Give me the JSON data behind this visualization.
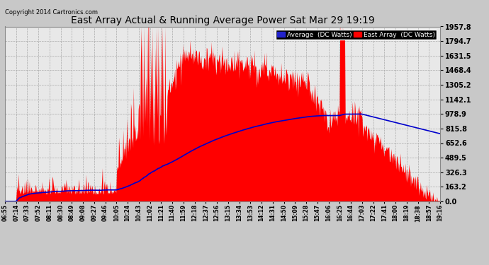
{
  "title": "East Array Actual & Running Average Power Sat Mar 29 19:19",
  "copyright": "Copyright 2014 Cartronics.com",
  "legend_avg": "Average  (DC Watts)",
  "legend_east": "East Array  (DC Watts)",
  "ymax": 1957.8,
  "yticks": [
    0.0,
    163.2,
    326.3,
    489.5,
    652.6,
    815.8,
    978.9,
    1142.1,
    1305.2,
    1468.4,
    1631.5,
    1794.7,
    1957.8
  ],
  "fill_color": "#ff0000",
  "avg_line_color": "#0000cc",
  "plot_bg": "#e8e8e8",
  "fig_bg": "#c8c8c8",
  "grid_color": "#aaaaaa",
  "title_color": "#000000",
  "xtick_labels": [
    "06:55",
    "07:14",
    "07:33",
    "07:52",
    "08:11",
    "08:30",
    "08:49",
    "09:08",
    "09:27",
    "09:46",
    "10:05",
    "10:24",
    "10:43",
    "11:02",
    "11:21",
    "11:40",
    "11:59",
    "12:18",
    "12:37",
    "12:56",
    "13:15",
    "13:34",
    "13:53",
    "14:12",
    "14:31",
    "14:50",
    "15:09",
    "15:28",
    "15:47",
    "16:06",
    "16:25",
    "16:44",
    "17:03",
    "17:22",
    "17:41",
    "18:00",
    "18:19",
    "18:38",
    "18:57",
    "19:16"
  ]
}
